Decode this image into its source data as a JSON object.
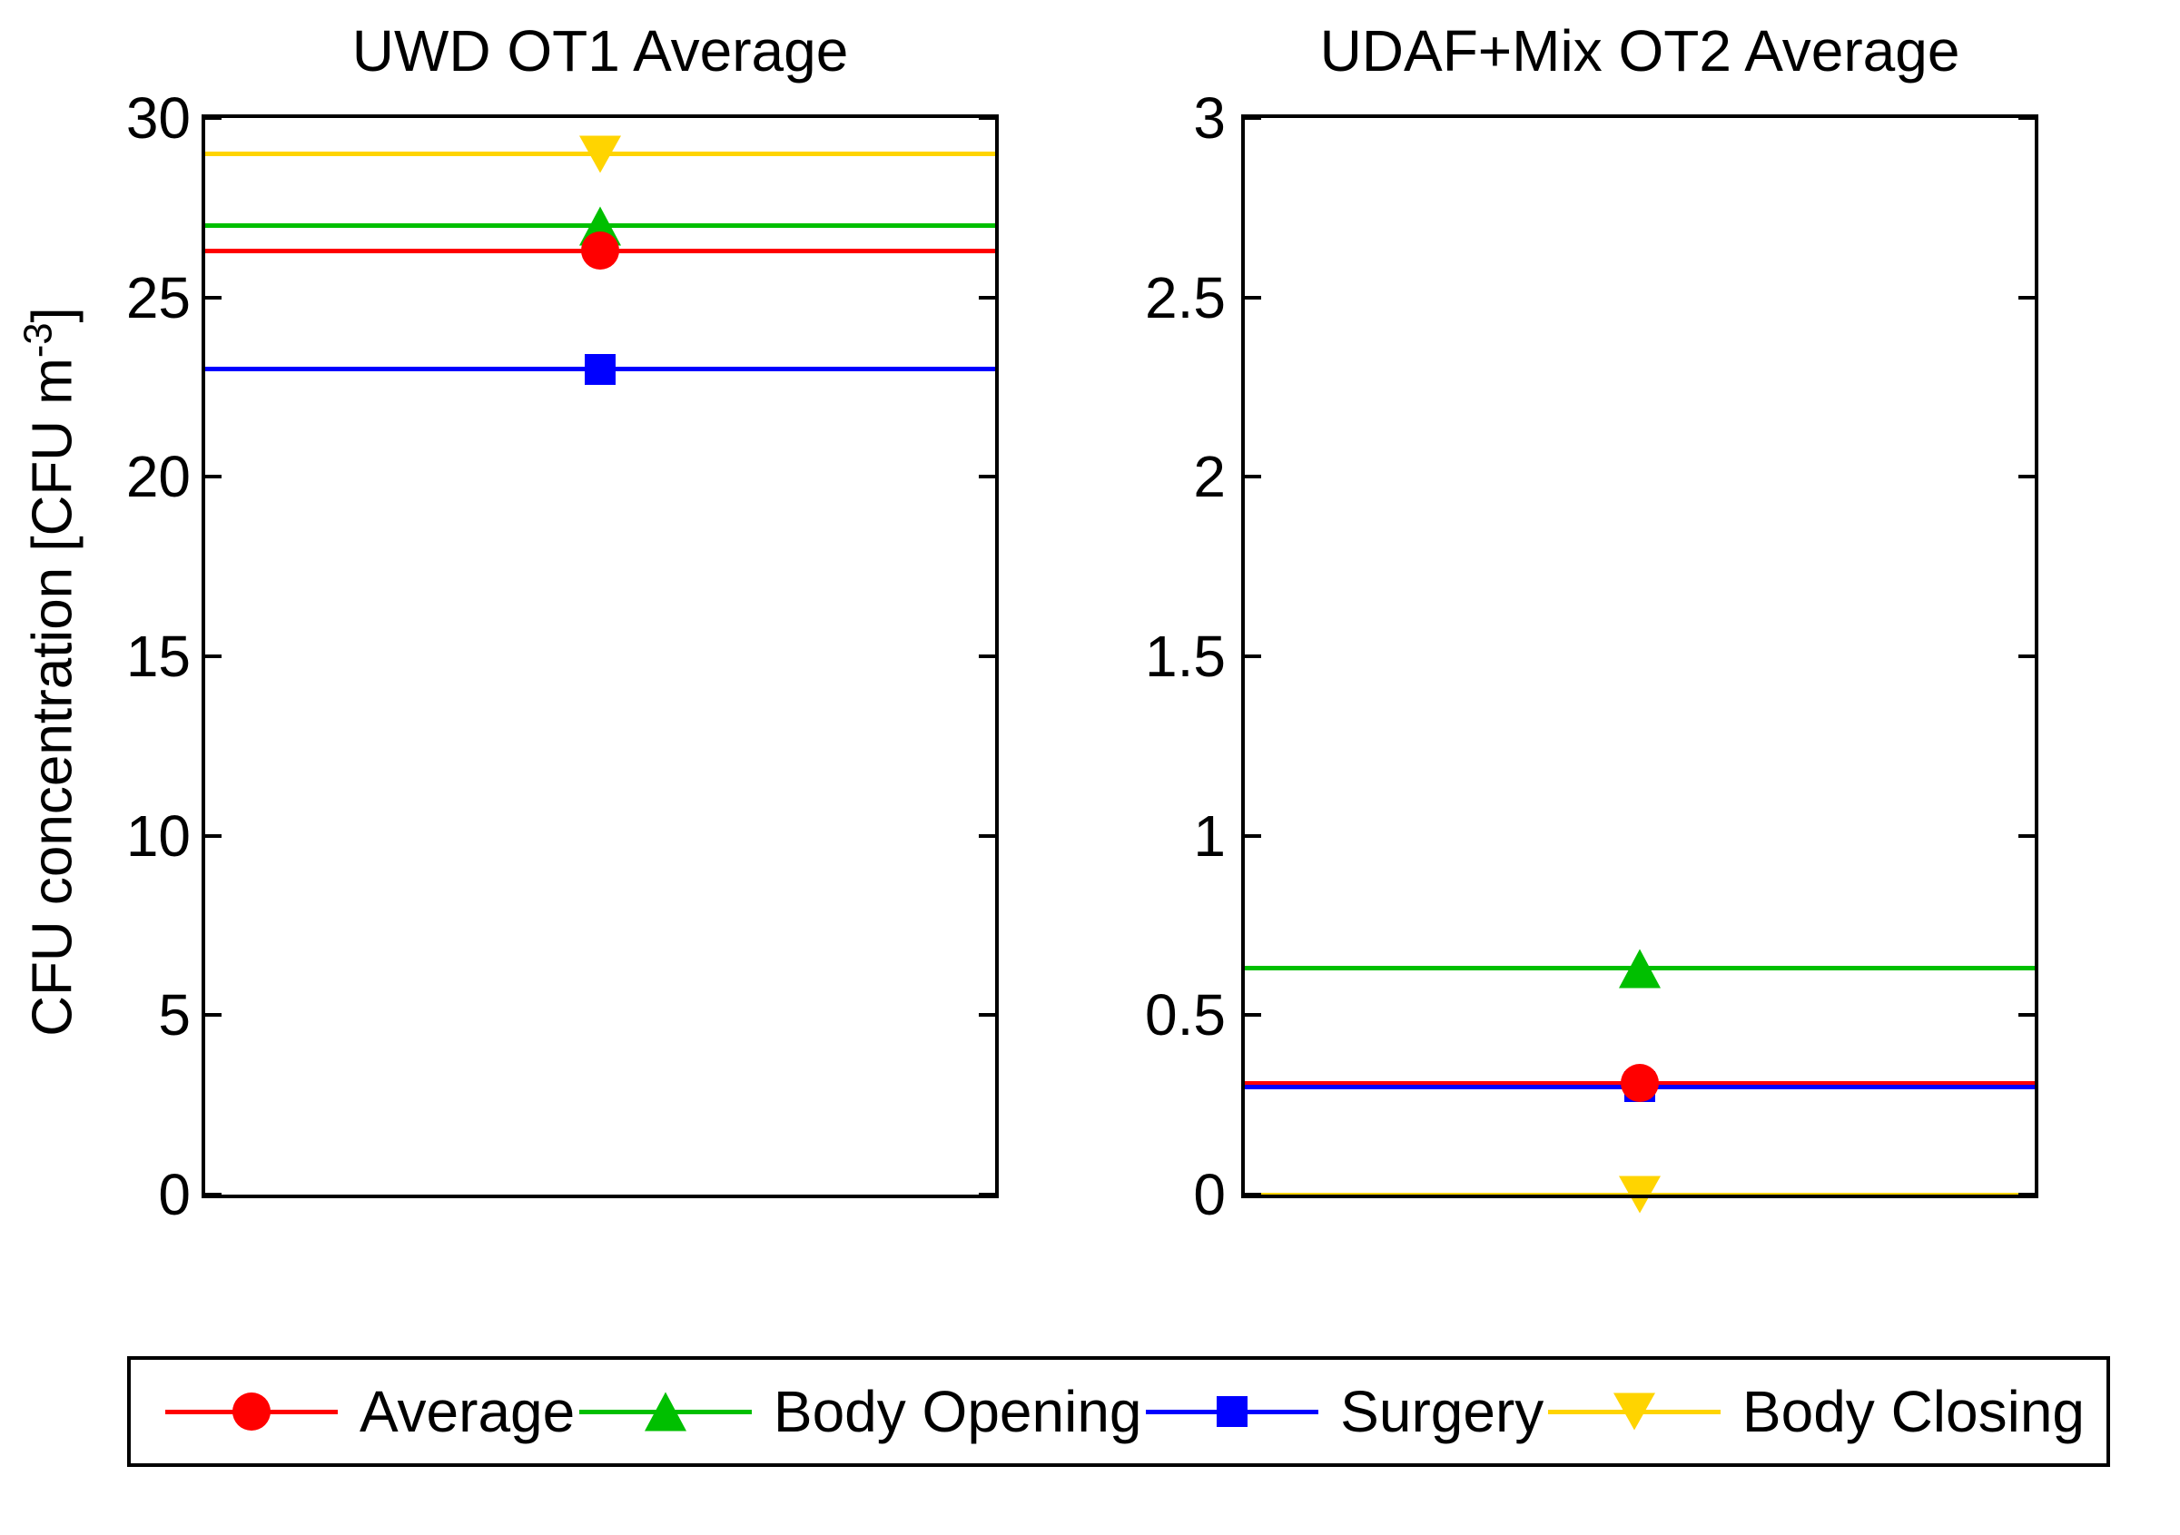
{
  "figure": {
    "background": "#FFFFFF",
    "axis_color": "#000000",
    "ylabel": {
      "prefix": "CFU concentration [CFU m",
      "superscript": "-3",
      "suffix": "]"
    }
  },
  "chart_data": [
    {
      "type": "line",
      "title": "UWD OT1 Average",
      "xlabel": "",
      "ylabel": "CFU concentration [CFU m^-3]",
      "ylim": [
        0,
        30
      ],
      "yticks": [
        0,
        5,
        10,
        15,
        20,
        25,
        30
      ],
      "ytick_labels": [
        "0",
        "5",
        "10",
        "15",
        "20",
        "25",
        "30"
      ],
      "grid": false,
      "series": [
        {
          "name": "Average",
          "color": "#FF0000",
          "marker": "circle",
          "value": 26.3
        },
        {
          "name": "Body Opening",
          "color": "#00BF00",
          "marker": "triangle-up",
          "value": 27
        },
        {
          "name": "Surgery",
          "color": "#0000FF",
          "marker": "square",
          "value": 23
        },
        {
          "name": "Body Closing",
          "color": "#FFD400",
          "marker": "triangle-down",
          "value": 29
        }
      ]
    },
    {
      "type": "line",
      "title": "UDAF+Mix OT2 Average",
      "xlabel": "",
      "ylabel": "CFU concentration [CFU m^-3]",
      "ylim": [
        0,
        3
      ],
      "yticks": [
        0,
        0.5,
        1,
        1.5,
        2,
        2.5,
        3
      ],
      "ytick_labels": [
        "0",
        "0.5",
        "1",
        "1.5",
        "2",
        "2.5",
        "3"
      ],
      "grid": false,
      "series": [
        {
          "name": "Average",
          "color": "#FF0000",
          "marker": "circle",
          "value": 0.31
        },
        {
          "name": "Body Opening",
          "color": "#00BF00",
          "marker": "triangle-up",
          "value": 0.63
        },
        {
          "name": "Surgery",
          "color": "#0000FF",
          "marker": "square",
          "value": 0.3
        },
        {
          "name": "Body Closing",
          "color": "#FFD400",
          "marker": "triangle-down",
          "value": 0
        }
      ]
    }
  ],
  "legend": {
    "position": "bottom",
    "items": [
      {
        "label": "Average",
        "color": "#FF0000",
        "marker": "circle"
      },
      {
        "label": "Body Opening",
        "color": "#00BF00",
        "marker": "triangle-up"
      },
      {
        "label": "Surgery",
        "color": "#0000FF",
        "marker": "square"
      },
      {
        "label": "Body Closing",
        "color": "#FFD400",
        "marker": "triangle-down"
      }
    ]
  }
}
